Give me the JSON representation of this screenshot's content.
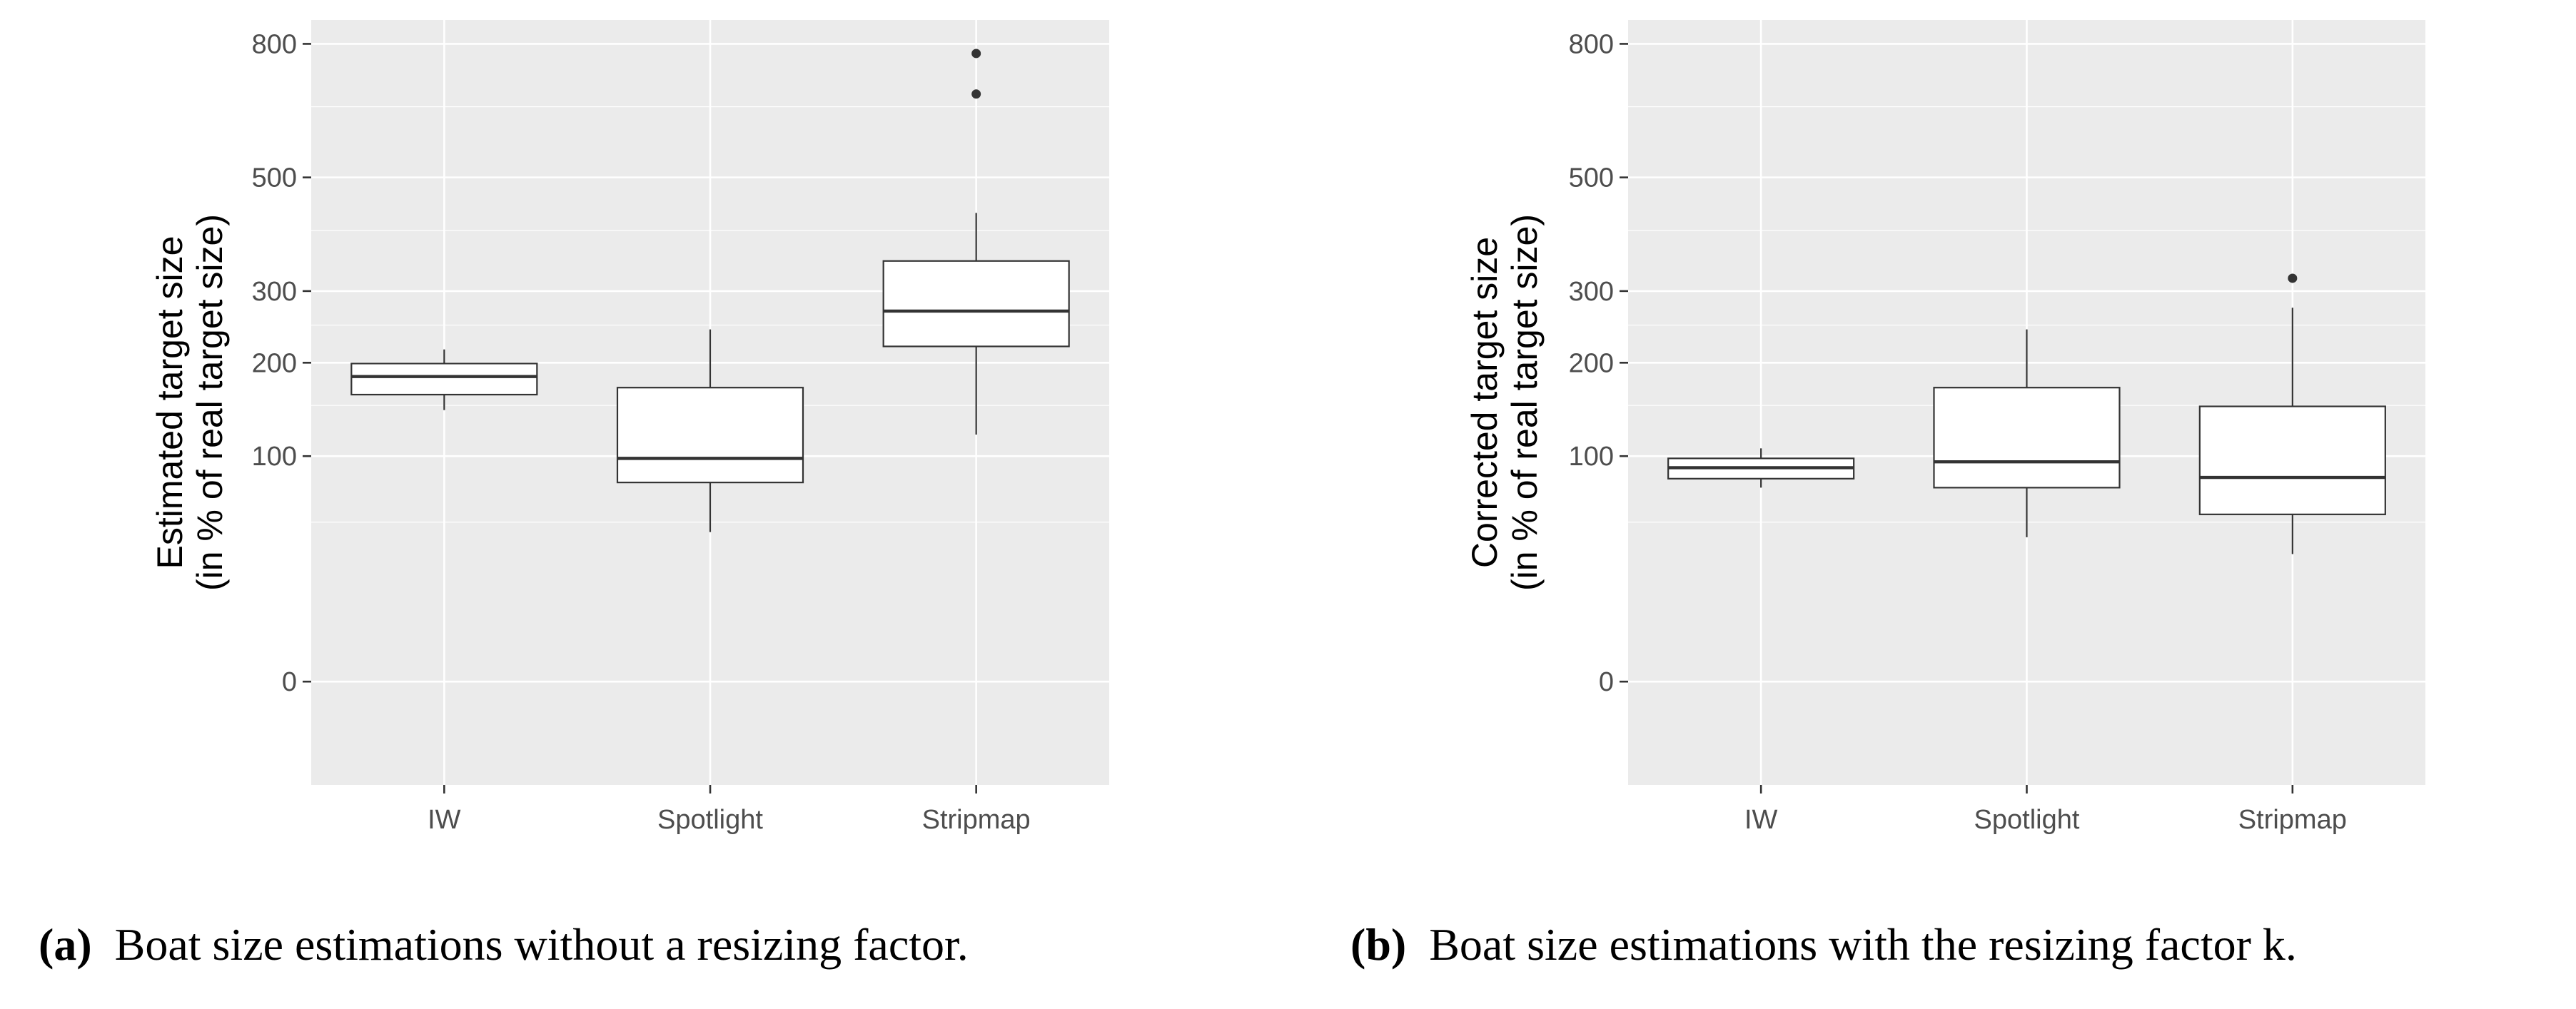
{
  "colors": {
    "panel_bg": "#ebebeb",
    "grid": "#ffffff",
    "box_fill": "#ffffff",
    "box_stroke": "#333333",
    "tick_text": "#4d4d4d"
  },
  "chart_data": [
    {
      "type": "boxplot",
      "ylabel": [
        "Estimated target size",
        "(in % of real target size)"
      ],
      "xlabel": "",
      "categories": [
        "IW",
        "Spotlight",
        "Stripmap"
      ],
      "y_axis": {
        "transform": "sqrt",
        "ylim": [
          -21,
          861
        ],
        "ticks": [
          0,
          100,
          200,
          300,
          500,
          800
        ]
      },
      "boxes": [
        {
          "category": "IW",
          "lower_whisker": 145,
          "q1": 162,
          "median": 183,
          "q3": 199,
          "upper_whisker": 217,
          "outliers": []
        },
        {
          "category": "Spotlight",
          "lower_whisker": 44,
          "q1": 78,
          "median": 98,
          "q3": 170,
          "upper_whisker": 244,
          "outliers": []
        },
        {
          "category": "Stripmap",
          "lower_whisker": 120,
          "q1": 221,
          "median": 270,
          "q3": 348,
          "upper_whisker": 432,
          "outliers": [
            679,
            776
          ]
        }
      ]
    },
    {
      "type": "boxplot",
      "ylabel": [
        "Corrected target size",
        "(in % of real target size)"
      ],
      "xlabel": "",
      "categories": [
        "IW",
        "Spotlight",
        "Stripmap"
      ],
      "y_axis": {
        "transform": "sqrt",
        "ylim": [
          -21,
          861
        ],
        "ticks": [
          0,
          100,
          200,
          300,
          500,
          800
        ]
      },
      "boxes": [
        {
          "category": "IW",
          "lower_whisker": 74,
          "q1": 81,
          "median": 90,
          "q3": 98,
          "upper_whisker": 107,
          "outliers": []
        },
        {
          "category": "Spotlight",
          "lower_whisker": 41,
          "q1": 74,
          "median": 95,
          "q3": 170,
          "upper_whisker": 244,
          "outliers": []
        },
        {
          "category": "Stripmap",
          "lower_whisker": 32,
          "q1": 55,
          "median": 82,
          "q3": 149,
          "upper_whisker": 275,
          "outliers": [
            320
          ]
        }
      ]
    }
  ],
  "captions": [
    {
      "tag": "(a)",
      "text": "Boat size estimations without a resizing factor."
    },
    {
      "tag": "(b)",
      "text": "Boat size estimations with the resizing factor k."
    }
  ]
}
